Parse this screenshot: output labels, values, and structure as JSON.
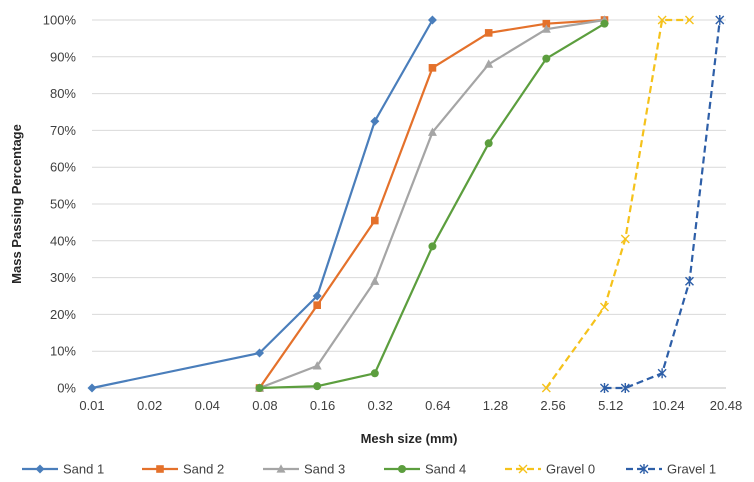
{
  "chart_data": {
    "type": "line",
    "xlabel": "Mesh size (mm)",
    "ylabel": "Mass Passing Percentage",
    "x_scale": "log2",
    "xlim": [
      0.01,
      20.48
    ],
    "ylim": [
      0,
      100
    ],
    "x_ticks": [
      {
        "value": 0.01,
        "label": "0.01"
      },
      {
        "value": 0.02,
        "label": "0.02"
      },
      {
        "value": 0.04,
        "label": "0.04"
      },
      {
        "value": 0.08,
        "label": "0.08"
      },
      {
        "value": 0.16,
        "label": "0.16"
      },
      {
        "value": 0.32,
        "label": "0.32"
      },
      {
        "value": 0.64,
        "label": "0.64"
      },
      {
        "value": 1.28,
        "label": "1.28"
      },
      {
        "value": 2.56,
        "label": "2.56"
      },
      {
        "value": 5.12,
        "label": "5.12"
      },
      {
        "value": 10.24,
        "label": "10.24"
      },
      {
        "value": 20.48,
        "label": "20.48"
      }
    ],
    "y_ticks": [
      {
        "value": 0,
        "label": "0%"
      },
      {
        "value": 10,
        "label": "10%"
      },
      {
        "value": 20,
        "label": "20%"
      },
      {
        "value": 30,
        "label": "30%"
      },
      {
        "value": 40,
        "label": "40%"
      },
      {
        "value": 50,
        "label": "50%"
      },
      {
        "value": 60,
        "label": "60%"
      },
      {
        "value": 70,
        "label": "70%"
      },
      {
        "value": 80,
        "label": "80%"
      },
      {
        "value": 90,
        "label": "90%"
      },
      {
        "value": 100,
        "label": "100%"
      }
    ],
    "grid": "horizontal",
    "legend_position": "bottom",
    "series": [
      {
        "name": "Sand 1",
        "color": "#4a7ebb",
        "marker": "diamond",
        "dash": "solid",
        "points": [
          [
            0.01,
            0
          ],
          [
            0.075,
            9.5
          ],
          [
            0.15,
            25
          ],
          [
            0.3,
            72.5
          ],
          [
            0.6,
            100
          ]
        ]
      },
      {
        "name": "Sand 2",
        "color": "#e4712b",
        "marker": "square",
        "dash": "solid",
        "points": [
          [
            0.075,
            0
          ],
          [
            0.15,
            22.5
          ],
          [
            0.3,
            45.5
          ],
          [
            0.6,
            87
          ],
          [
            1.18,
            96.5
          ],
          [
            2.36,
            99
          ],
          [
            4.75,
            100
          ]
        ]
      },
      {
        "name": "Sand 3",
        "color": "#a5a5a5",
        "marker": "triangle",
        "dash": "solid",
        "points": [
          [
            0.075,
            0
          ],
          [
            0.15,
            6
          ],
          [
            0.3,
            29
          ],
          [
            0.6,
            69.5
          ],
          [
            1.18,
            88
          ],
          [
            2.36,
            97.5
          ],
          [
            4.75,
            100
          ]
        ]
      },
      {
        "name": "Sand 4",
        "color": "#5c9e3e",
        "marker": "circle",
        "dash": "solid",
        "points": [
          [
            0.075,
            0
          ],
          [
            0.15,
            0.5
          ],
          [
            0.3,
            4
          ],
          [
            0.6,
            38.5
          ],
          [
            1.18,
            66.5
          ],
          [
            2.36,
            89.5
          ],
          [
            4.75,
            99
          ]
        ]
      },
      {
        "name": "Gravel 0",
        "color": "#f5c21b",
        "marker": "x",
        "dash": "dashed",
        "points": [
          [
            2.36,
            0
          ],
          [
            4.75,
            22
          ],
          [
            6.1,
            40.5
          ],
          [
            9.5,
            100
          ],
          [
            13.2,
            100
          ]
        ]
      },
      {
        "name": "Gravel 1",
        "color": "#2e5fa8",
        "marker": "star",
        "dash": "dashed",
        "points": [
          [
            4.75,
            0
          ],
          [
            6.1,
            0
          ],
          [
            9.5,
            4
          ],
          [
            13.2,
            29
          ],
          [
            19,
            100
          ]
        ]
      }
    ]
  }
}
